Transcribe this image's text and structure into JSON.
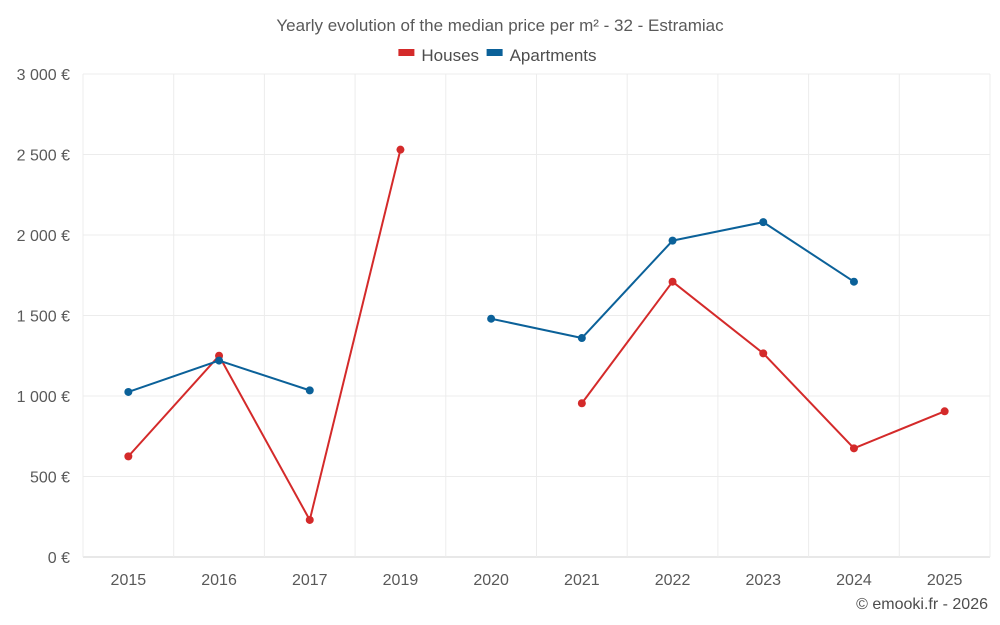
{
  "chart_data": {
    "type": "line",
    "title": "Yearly evolution of the median price per m² - 32 - Estramiac",
    "categories": [
      "2015",
      "2016",
      "2017",
      "2019",
      "2020",
      "2021",
      "2022",
      "2023",
      "2024",
      "2025"
    ],
    "series": [
      {
        "name": "Houses",
        "color": "#d42a2a",
        "values": [
          625,
          1250,
          230,
          2530,
          null,
          955,
          1710,
          1265,
          675,
          905
        ]
      },
      {
        "name": "Apartments",
        "color": "#0b6199",
        "values": [
          1025,
          1220,
          1035,
          null,
          1480,
          1360,
          1965,
          2080,
          1710,
          null
        ]
      }
    ],
    "ylim": [
      0,
      3000
    ],
    "yticks": [
      0,
      500,
      1000,
      1500,
      2000,
      2500,
      3000
    ],
    "ytick_labels": [
      "0 €",
      "500 €",
      "1 000 €",
      "1 500 €",
      "2 000 €",
      "2 500 €",
      "3 000 €"
    ],
    "xlabel": "",
    "ylabel": "",
    "grid": true,
    "legend_position": "top-center"
  },
  "credit": "© emooki.fr - 2026"
}
